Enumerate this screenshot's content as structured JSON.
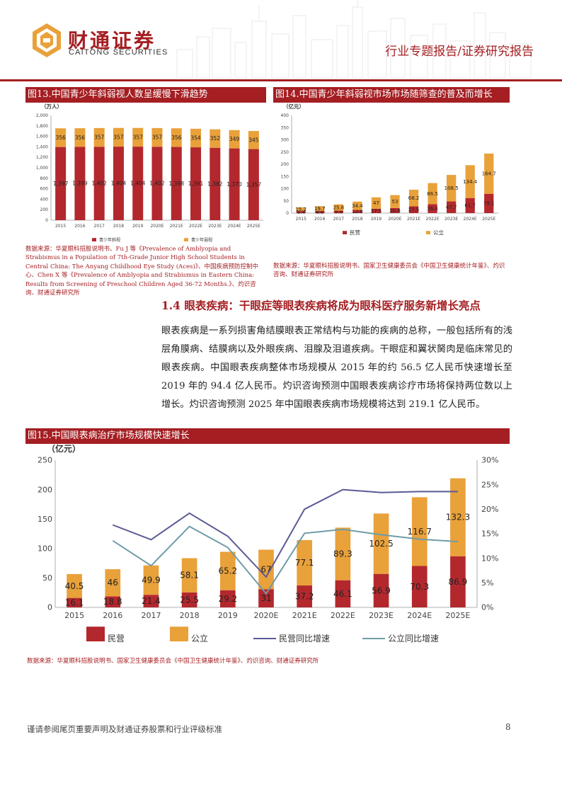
{
  "header": {
    "brand_cn": "财通证券",
    "brand_en": "CAITONG SECURITIES",
    "report_type": "行业专题报告/证券研究报告"
  },
  "fig13": {
    "title": "图13.中国青少年斜弱视人数呈缓慢下滑趋势",
    "source": "数据来源：华夏眼科招股说明书、Fu J 等《Prevalence of Amblyopia and Strabismus in a Population of 7th-Grade Junior High School Students in Central China: The Anyang Childhood Eye Study (Aces)》、中国疾病预防控制中心、Chen X 等《Prevalence of Amblyopia and Strabismus in Eastern China: Results from Screening of Preschool Children Aged 36-72 Months.》、灼识咨询、财通证券研究所"
  },
  "fig14": {
    "title": "图14.中国青少年斜弱视市场市场随筛查的普及而增长",
    "source": "数据来源：华夏眼科招股说明书、国家卫生健康委员会《中国卫生健康统计年鉴》、灼识咨询、财通证券研究所"
  },
  "section": {
    "heading": "1.4  眼表疾病：干眼症等眼表疾病将成为眼科医疗服务新增长亮点",
    "body": "眼表疾病是一系列损害角结膜眼表正常结构与功能的疾病的总称，一般包括所有的浅层角膜病、结膜病以及外眼疾病、泪腺及泪道疾病。干眼症和翼状胬肉是临床常见的眼表疾病。中国眼表疾病整体市场规模从 2015 年的约 56.5 亿人民币快速增长至 2019 年的 94.4 亿人民币。灼识咨询预测中国眼表疾病诊疗市场将保持两位数以上增长。灼识咨询预测 2025 年中国眼表疾病市场规模将达到 219.1 亿人民币。"
  },
  "fig15": {
    "title": "图15.中国眼表病治疗市场规模快速增长",
    "source": "数据来源：华夏眼科招股说明书、国家卫生健康委员会《中国卫生健康统计年鉴》、灼识咨询、财通证券研究所"
  },
  "footer": {
    "note": "谨请参阅尾页重要声明及财通证券股票和行业评级标准",
    "page": "8"
  },
  "chart_data": [
    {
      "id": "fig13",
      "type": "bar",
      "stacked": true,
      "unit_label": "（万人）",
      "categories": [
        "2015",
        "2016",
        "2017",
        "2018",
        "2019",
        "2020E",
        "2021E",
        "2022E",
        "2023E",
        "2024E",
        "2025E"
      ],
      "series": [
        {
          "name": "青少年斜视",
          "color": "#b3282d",
          "values": [
            1397,
            1399,
            1402,
            1404,
            1404,
            1402,
            1398,
            1391,
            1382,
            1370,
            1357
          ],
          "labels": [
            "1,397",
            "1,399",
            "1,402",
            "1,404",
            "1,404",
            "1,402",
            "1,398",
            "1,391",
            "1,382",
            "1,370",
            "1,357"
          ]
        },
        {
          "name": "青少年弱视",
          "color": "#e9a13a",
          "values": [
            356,
            356,
            357,
            357,
            357,
            357,
            356,
            354,
            352,
            349,
            345
          ],
          "labels": [
            "356",
            "356",
            "357",
            "357",
            "357",
            "357",
            "356",
            "354",
            "352",
            "349",
            "345"
          ]
        }
      ],
      "yticks": [
        "0",
        "200",
        "400",
        "600",
        "800",
        "1,000",
        "1,200",
        "1,400",
        "1,600",
        "1,800",
        "2,000"
      ],
      "ylim": [
        0,
        2000
      ]
    },
    {
      "id": "fig14",
      "type": "bar",
      "stacked": true,
      "unit_label": "（亿元）",
      "categories": [
        "2015",
        "2016",
        "2017",
        "2018",
        "2019",
        "2020E",
        "2021E",
        "2022E",
        "2023E",
        "2024E",
        "2025E"
      ],
      "series": [
        {
          "name": "民营",
          "color": "#b3282d",
          "values": [
            8.4,
            8.6,
            9.9,
            12.8,
            17.5,
            20.6,
            27.5,
            36.4,
            47.7,
            61.7,
            79.1
          ],
          "labels": [
            "8.4",
            "8.6",
            "9.9",
            "12.8",
            "17.5",
            "20.6",
            "27.5",
            "36.4",
            "47.7",
            "61.7",
            "79.1"
          ]
        },
        {
          "name": "公立",
          "color": "#e9a13a",
          "values": [
            15.2,
            19.7,
            25.8,
            34.4,
            47,
            53,
            68.2,
            86.5,
            108.5,
            134.4,
            164.7
          ],
          "labels": [
            "15.2",
            "19.7",
            "25.8",
            "34.4",
            "47",
            "53",
            "68.2",
            "86.5",
            "108.5",
            "134.4",
            "164.7"
          ]
        }
      ],
      "yticks": [
        "0",
        "50",
        "100",
        "150",
        "200",
        "250",
        "300",
        "350",
        "400"
      ],
      "ylim": [
        0,
        400
      ]
    },
    {
      "id": "fig15",
      "type": "bar",
      "stacked": true,
      "unit_label": "（亿元）",
      "categories": [
        "2015",
        "2016",
        "2017",
        "2018",
        "2019",
        "2020E",
        "2021E",
        "2022E",
        "2023E",
        "2024E",
        "2025E"
      ],
      "series": [
        {
          "name": "民营",
          "color": "#b3282d",
          "values": [
            16.1,
            18.8,
            21.4,
            25.5,
            29.2,
            31,
            37.2,
            46.1,
            56.9,
            70.3,
            86.9
          ],
          "labels": [
            "16.1",
            "18.8",
            "21.4",
            "25.5",
            "29.2",
            "31",
            "37.2",
            "46.1",
            "56.9",
            "70.3",
            "86.9"
          ]
        },
        {
          "name": "公立",
          "color": "#e9a13a",
          "values": [
            40.5,
            46,
            49.9,
            58.1,
            65.2,
            67,
            77.1,
            89.3,
            102.5,
            116.7,
            132.3
          ],
          "labels": [
            "40.5",
            "46",
            "49.9",
            "58.1",
            "65.2",
            "67",
            "77.1",
            "89.3",
            "102.5",
            "116.7",
            "132.3"
          ]
        }
      ],
      "lines": [
        {
          "name": "民营同比增速",
          "color": "#5a5a96",
          "values": [
            null,
            16.8,
            13.8,
            19.2,
            14.5,
            6.2,
            20.0,
            24.0,
            23.4,
            23.6,
            23.6
          ]
        },
        {
          "name": "公立同比增速",
          "color": "#6e9ca8",
          "values": [
            null,
            13.6,
            8.5,
            16.5,
            12.2,
            2.8,
            15.1,
            15.9,
            14.8,
            13.9,
            13.4
          ]
        }
      ],
      "yticks": [
        "0",
        "50",
        "100",
        "150",
        "200",
        "250"
      ],
      "ylim": [
        0,
        250
      ],
      "y2ticks": [
        "0%",
        "5%",
        "10%",
        "15%",
        "20%",
        "25%",
        "30%"
      ],
      "y2lim": [
        0,
        30
      ]
    }
  ]
}
